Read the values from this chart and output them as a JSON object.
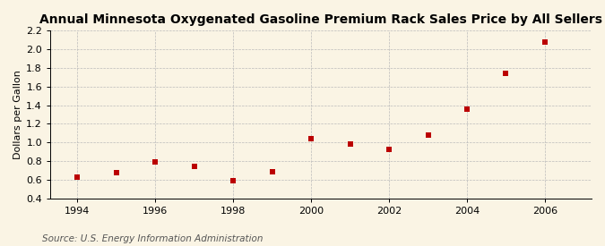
{
  "title": "Annual Minnesota Oxygenated Gasoline Premium Rack Sales Price by All Sellers",
  "ylabel": "Dollars per Gallon",
  "source": "Source: U.S. Energy Information Administration",
  "years": [
    1994,
    1995,
    1996,
    1997,
    1998,
    1999,
    2000,
    2001,
    2002,
    2003,
    2004,
    2005,
    2006
  ],
  "values": [
    0.63,
    0.68,
    0.79,
    0.74,
    0.59,
    0.69,
    1.04,
    0.98,
    0.93,
    1.08,
    1.36,
    1.74,
    2.08
  ],
  "xlim": [
    1993.3,
    2007.2
  ],
  "ylim": [
    0.4,
    2.2
  ],
  "yticks": [
    0.4,
    0.6,
    0.8,
    1.0,
    1.2,
    1.4,
    1.6,
    1.8,
    2.0,
    2.2
  ],
  "xticks": [
    1994,
    1996,
    1998,
    2000,
    2002,
    2004,
    2006
  ],
  "marker_color": "#bb0000",
  "marker": "s",
  "marker_size": 18,
  "bg_color": "#faf4e4",
  "grid_color": "#bbbbbb",
  "title_fontsize": 10,
  "label_fontsize": 8,
  "tick_fontsize": 8,
  "source_fontsize": 7.5
}
